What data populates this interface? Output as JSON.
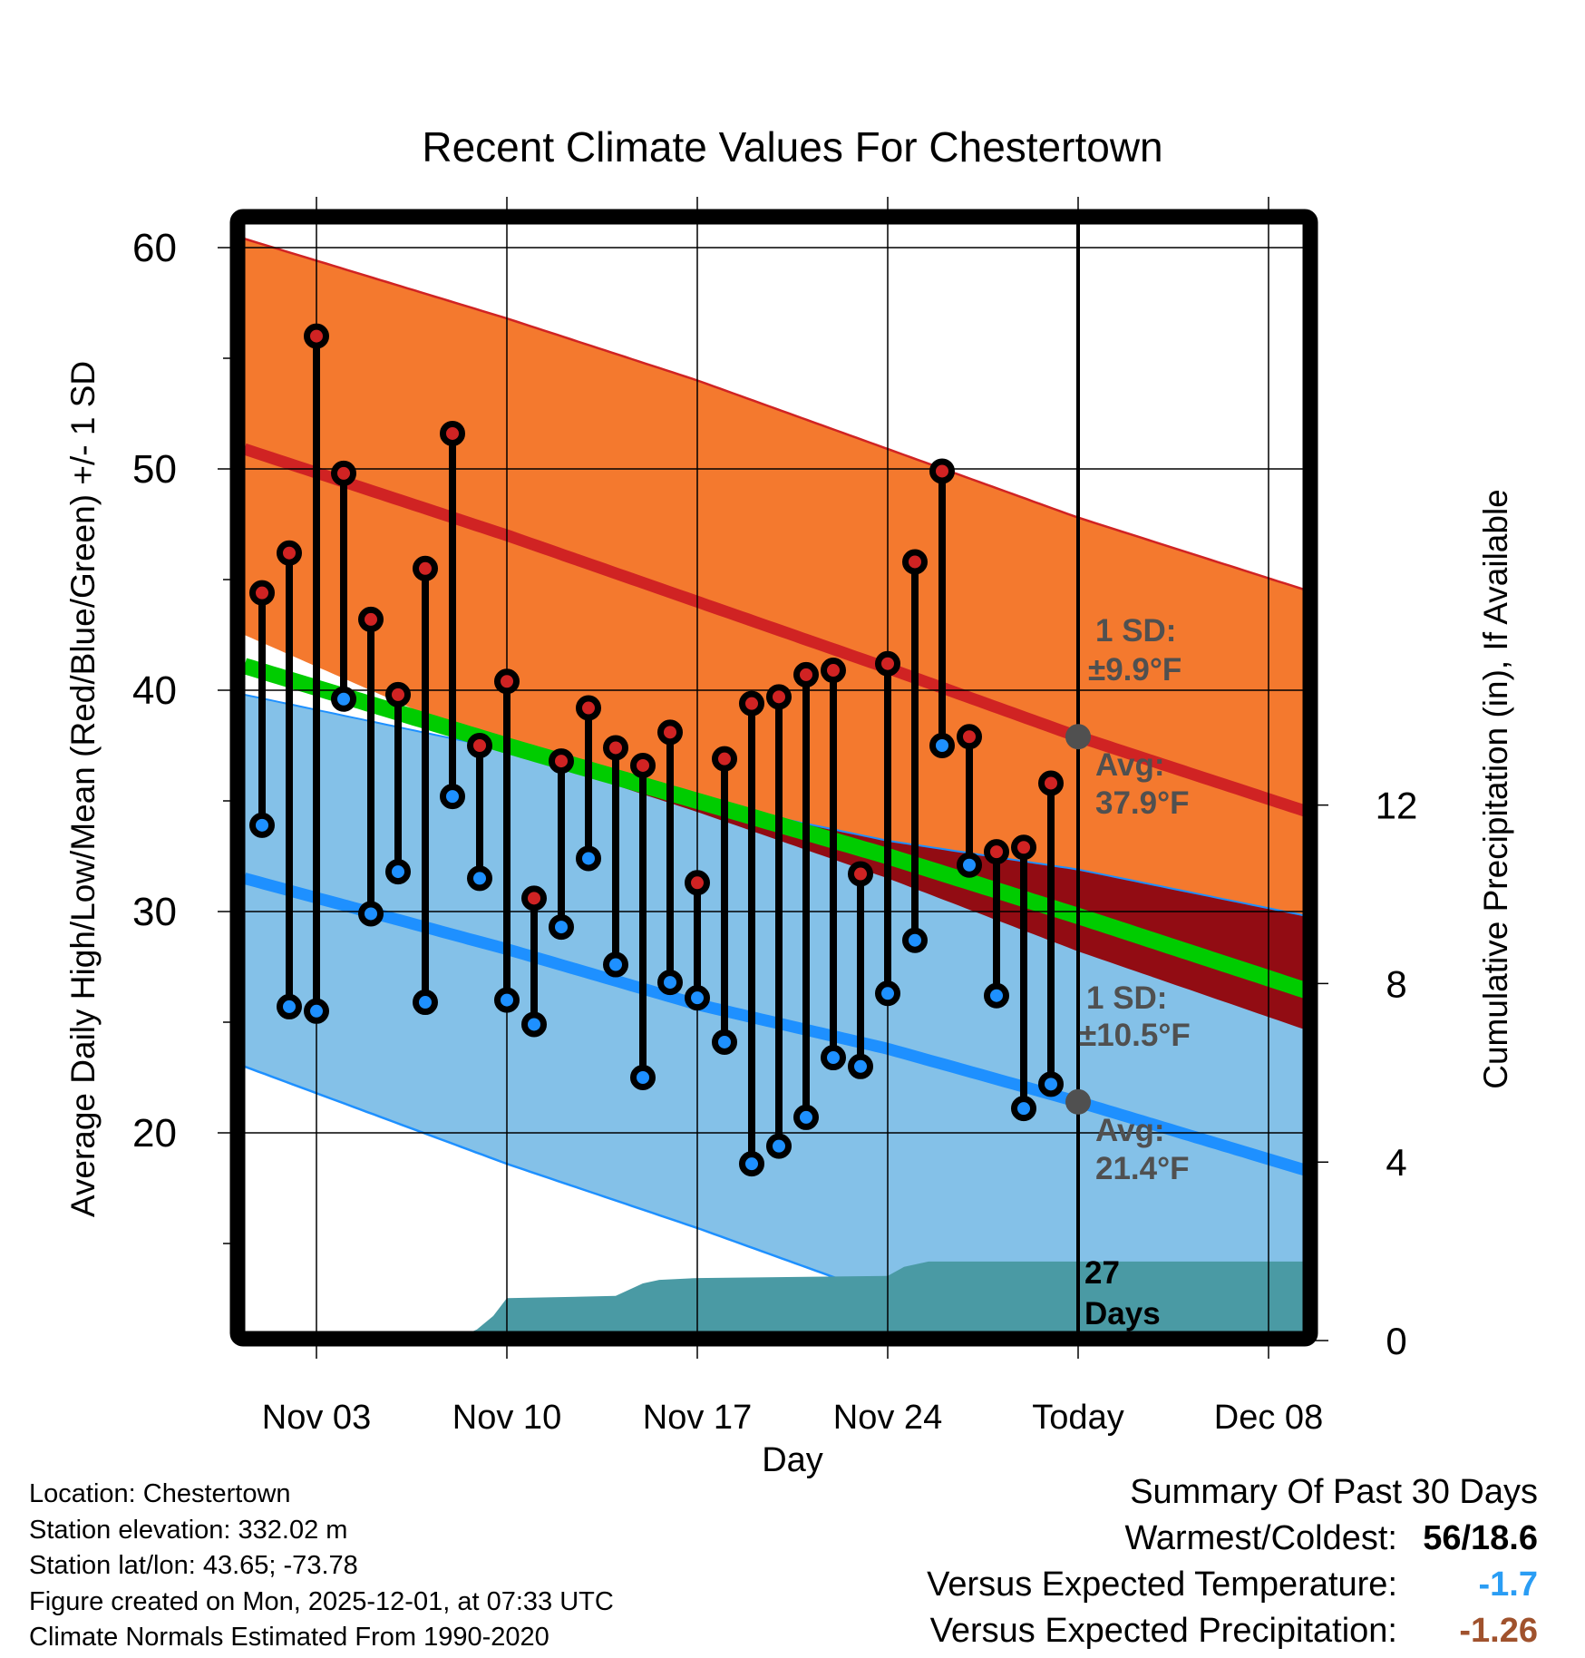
{
  "chart_data": {
    "type": "line",
    "title": "Recent Climate Values For Chestertown",
    "xlabel": "Day",
    "ylabel": "Average Daily High/Low/Mean (Red/Blue/Green) +/- 1 SD",
    "y2label": "Cumulative Precipitation (in), If Available",
    "ylim": [
      11,
      61.5
    ],
    "y2lim": [
      0,
      22
    ],
    "yticks": [
      20,
      30,
      40,
      50,
      60
    ],
    "y2ticks": [
      0,
      4,
      8,
      12
    ],
    "xlim_day_index": [
      0.35,
      40.2
    ],
    "xticks": [
      {
        "label": "Nov 03",
        "day": 3
      },
      {
        "label": "Nov 10",
        "day": 10
      },
      {
        "label": "Nov 17",
        "day": 17
      },
      {
        "label": "Nov 24",
        "day": 24
      },
      {
        "label": "Today",
        "day": 31
      },
      {
        "label": "Dec 08",
        "day": 38
      }
    ],
    "grid": true,
    "days": [
      1,
      2,
      3,
      4,
      5,
      6,
      7,
      8,
      9,
      10,
      11,
      12,
      13,
      14,
      15,
      16,
      17,
      18,
      19,
      20,
      21,
      22,
      23,
      24,
      25,
      26,
      27,
      28,
      29,
      30
    ],
    "series": [
      {
        "name": "Observed High",
        "color": "#d02323",
        "values": [
          44.4,
          46.2,
          56.0,
          49.8,
          43.2,
          39.8,
          45.5,
          51.6,
          37.5,
          40.4,
          30.6,
          36.8,
          39.2,
          37.4,
          36.6,
          38.1,
          31.3,
          36.9,
          39.4,
          39.7,
          40.7,
          40.9,
          31.7,
          41.2,
          45.8,
          49.9,
          37.9,
          32.7,
          32.9,
          35.8
        ]
      },
      {
        "name": "Observed Low",
        "color": "#1e90ff",
        "values": [
          33.9,
          25.7,
          25.5,
          39.6,
          29.9,
          31.8,
          25.9,
          35.2,
          31.5,
          26.0,
          24.9,
          29.3,
          32.4,
          27.6,
          22.5,
          26.8,
          26.1,
          24.1,
          18.6,
          19.4,
          20.7,
          23.4,
          23.0,
          26.3,
          28.7,
          37.5,
          32.1,
          26.2,
          21.1,
          22.2
        ]
      }
    ],
    "normals": {
      "days": [
        0.35,
        10,
        17,
        24,
        31,
        40.2
      ],
      "high_avg": [
        50.9,
        47.0,
        44.0,
        41.0,
        37.9,
        34.2
      ],
      "high_plus_sd": [
        60.4,
        56.8,
        54.0,
        50.9,
        47.8,
        44.2
      ],
      "high_minus_sd": [
        42.5,
        37.3,
        34.5,
        31.5,
        28.2,
        24.3
      ],
      "low_avg": [
        31.5,
        28.3,
        25.8,
        23.8,
        21.4,
        18.0
      ],
      "low_plus_sd": [
        39.8,
        37.3,
        35.0,
        33.2,
        31.9,
        29.6
      ],
      "low_minus_sd": [
        23.0,
        18.6,
        15.7,
        12.6,
        10.9,
        7.5
      ],
      "mean_avg": [
        41.1,
        37.5,
        35.0,
        32.5,
        29.8,
        26.1
      ]
    },
    "precip_cumulative": {
      "days": [
        0.35,
        8.0,
        8.9,
        9.5,
        10.0,
        14.0,
        15.0,
        15.6,
        17.0,
        24.0,
        24.6,
        25.5,
        40.2
      ],
      "values": [
        0,
        0,
        0.25,
        0.55,
        0.95,
        1.0,
        1.28,
        1.36,
        1.4,
        1.45,
        1.65,
        1.77,
        1.77
      ]
    },
    "annotations": {
      "high_sd": "1 SD:",
      "high_sd_val": "±9.9°F",
      "high_avg": "Avg:",
      "high_avg_val": "37.9°F",
      "low_sd": "1 SD:",
      "low_sd_val": "±10.5°F",
      "low_avg": "Avg:",
      "low_avg_val": "21.4°F",
      "days_count": "27",
      "days_word": "Days"
    },
    "today_marker": {
      "day": 31,
      "high_avg": 37.9,
      "low_avg": 21.4
    },
    "colors": {
      "high_band": "#f4792e",
      "high_line": "#d02323",
      "low_band": "#84c1e8",
      "low_line": "#1e90ff",
      "overlap": "#920c13",
      "mean_band": "#00cc00",
      "precip": "#4a9aa4",
      "annotation": "#505050"
    }
  },
  "meta": {
    "location": "Location: Chestertown",
    "elevation": "Station elevation: 332.02 m",
    "latlon": "Station lat/lon: 43.65; -73.78",
    "created": "Figure created on Mon, 2025-12-01, at 07:33 UTC",
    "normals": "Climate Normals Estimated From 1990-2020"
  },
  "summary": {
    "title": "Summary Of Past 30 Days",
    "warm_cold_label": "Warmest/Coldest:",
    "warm_cold_value": "56/18.6",
    "temp_label": "Versus Expected Temperature:",
    "temp_value": "-1.7",
    "temp_color": "#2a9df4",
    "precip_label": "Versus Expected Precipitation:",
    "precip_value": "-1.26",
    "precip_color": "#a0522d"
  }
}
